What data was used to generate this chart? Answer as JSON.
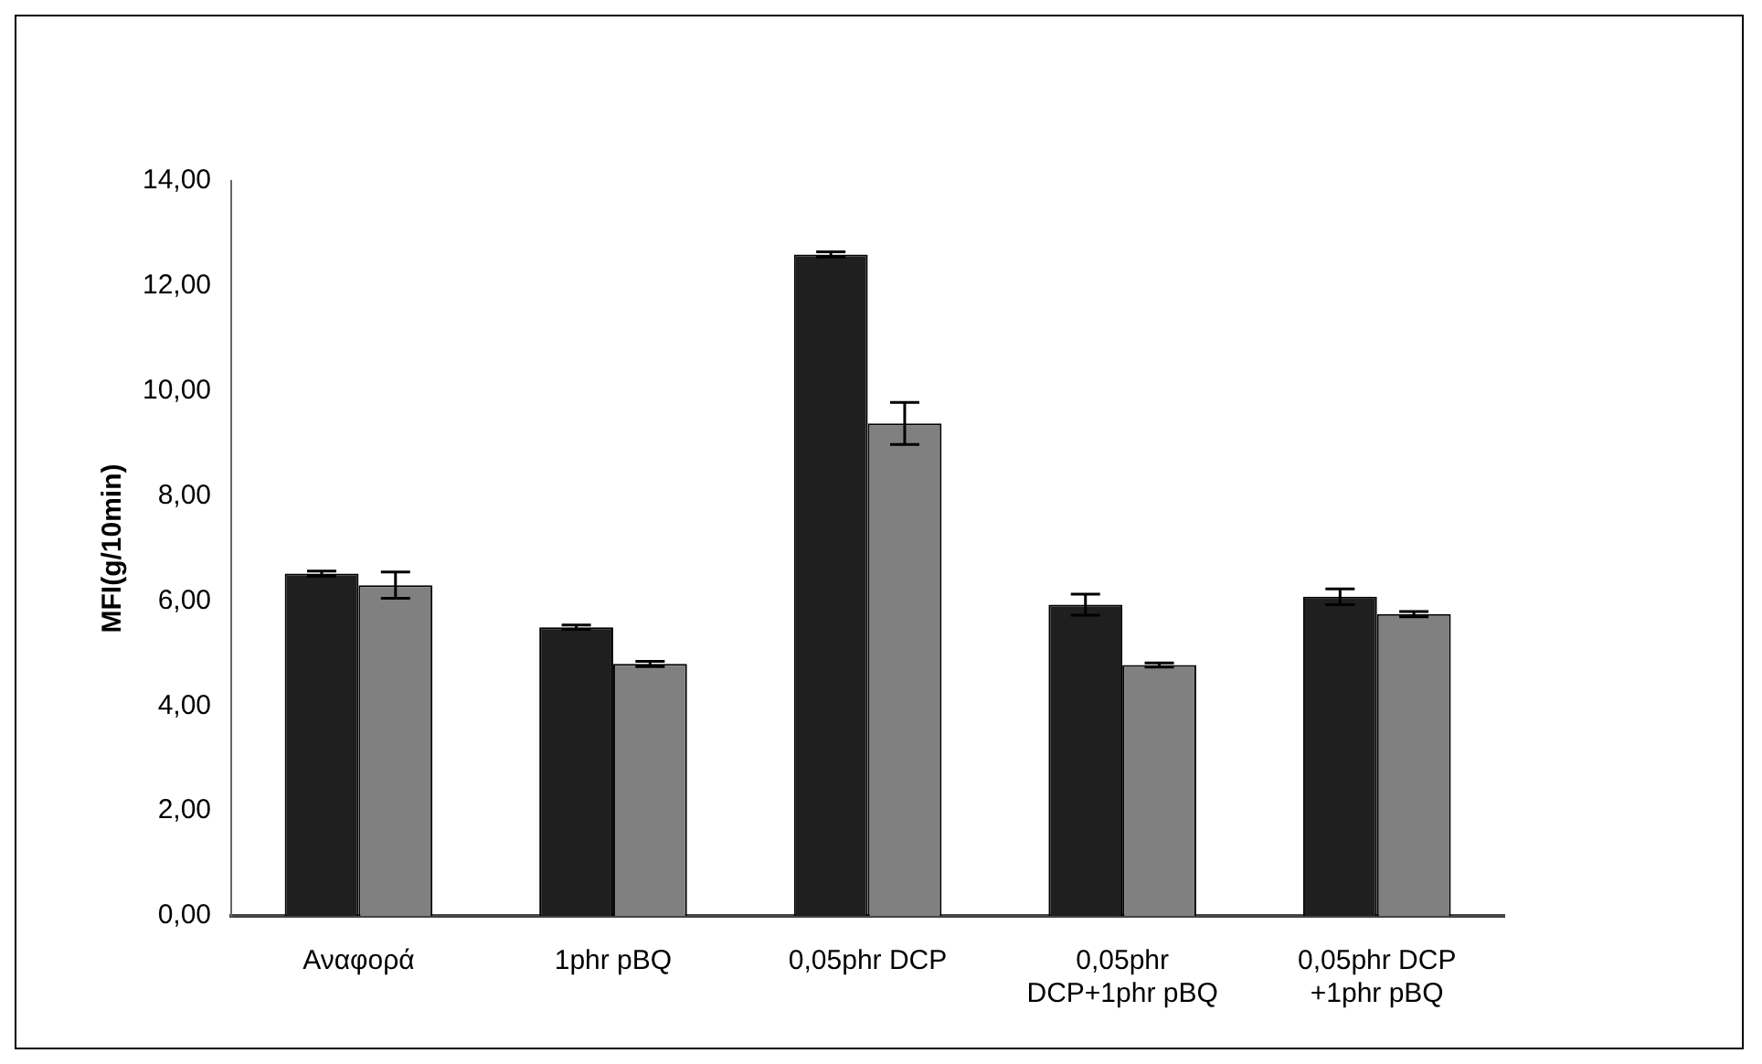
{
  "chart_data": {
    "type": "bar",
    "ylabel": "MFI(g/10min)",
    "categories": [
      "Αναφορά",
      "1phr pBQ",
      "0,05phr DCP",
      "0,05phr DCP+1phr pBQ",
      "0,05phr DCP +1phr pBQ"
    ],
    "series": [
      {
        "color": "#1f1f1f",
        "values": [
          6.52,
          5.5,
          12.6,
          5.93,
          6.08
        ],
        "errors": [
          0.05,
          0.04,
          0.05,
          0.2,
          0.15
        ]
      },
      {
        "color": "#808080",
        "values": [
          6.3,
          4.8,
          9.38,
          4.78,
          5.75
        ],
        "errors": [
          0.25,
          0.05,
          0.4,
          0.04,
          0.05
        ]
      }
    ],
    "ylim": [
      0,
      14
    ],
    "yticks": [
      {
        "value": 0,
        "label": "0,00"
      },
      {
        "value": 2,
        "label": "2,00"
      },
      {
        "value": 4,
        "label": "4,00"
      },
      {
        "value": 6,
        "label": "6,00"
      },
      {
        "value": 8,
        "label": "8,00"
      },
      {
        "value": 10,
        "label": "10,00"
      },
      {
        "value": 12,
        "label": "12,00"
      },
      {
        "value": 14,
        "label": "14,00"
      }
    ],
    "grid": false,
    "legend": false
  }
}
